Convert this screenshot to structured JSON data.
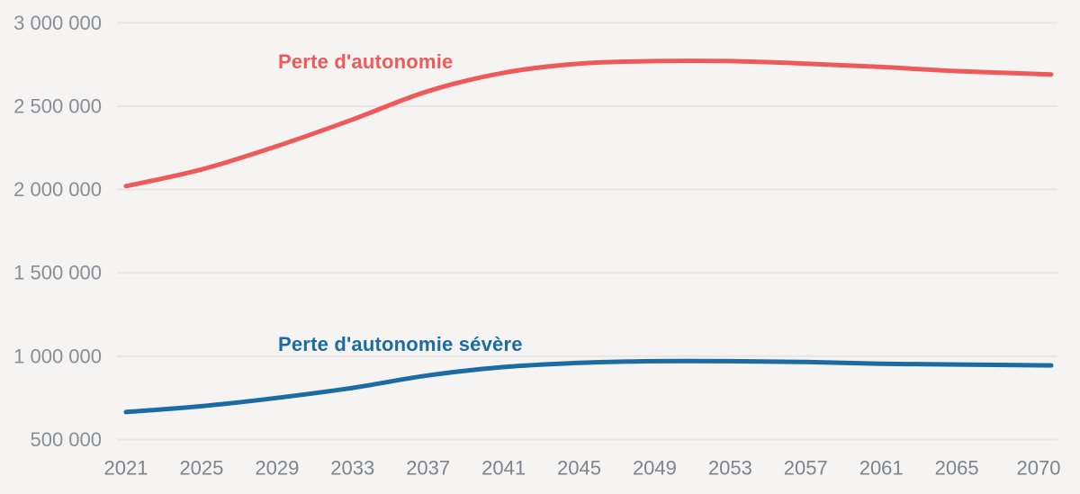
{
  "page": {
    "background_color": "#f5f4f2",
    "gridline_color": "#e7e6e4",
    "y_tick_label_color": "#898d95",
    "x_tick_label_color": "#7f838a"
  },
  "chart_data": {
    "type": "line",
    "title": "",
    "xlabel": "",
    "ylabel": "",
    "grid": "horizontal-only",
    "legend_position": "inline-labels-above-lines",
    "x": [
      2021,
      2025,
      2029,
      2033,
      2037,
      2041,
      2045,
      2049,
      2053,
      2057,
      2061,
      2065,
      2070
    ],
    "x_tick_labels": [
      "2021",
      "2025",
      "2029",
      "2033",
      "2037",
      "2041",
      "2045",
      "2049",
      "2053",
      "2057",
      "2061",
      "2065",
      "2070"
    ],
    "xlim": [
      2021,
      2070
    ],
    "y_ticks": [
      500000,
      1000000,
      1500000,
      2000000,
      2500000,
      3000000
    ],
    "y_tick_labels": [
      "500 000",
      "1 000 000",
      "1 500 000",
      "2 000 000",
      "2 500 000",
      "3 000 000"
    ],
    "ylim": [
      500000,
      3000000
    ],
    "series": [
      {
        "name": "Perte d'autonomie",
        "color": "#ee5a5a",
        "values": [
          2020000,
          2120000,
          2260000,
          2420000,
          2590000,
          2700000,
          2755000,
          2770000,
          2770000,
          2755000,
          2735000,
          2710000,
          2690000
        ]
      },
      {
        "name": "Perte d'autonomie sévère",
        "color": "#1c6ba3",
        "values": [
          665000,
          700000,
          750000,
          810000,
          885000,
          935000,
          960000,
          970000,
          970000,
          965000,
          955000,
          950000,
          945000
        ]
      }
    ]
  }
}
